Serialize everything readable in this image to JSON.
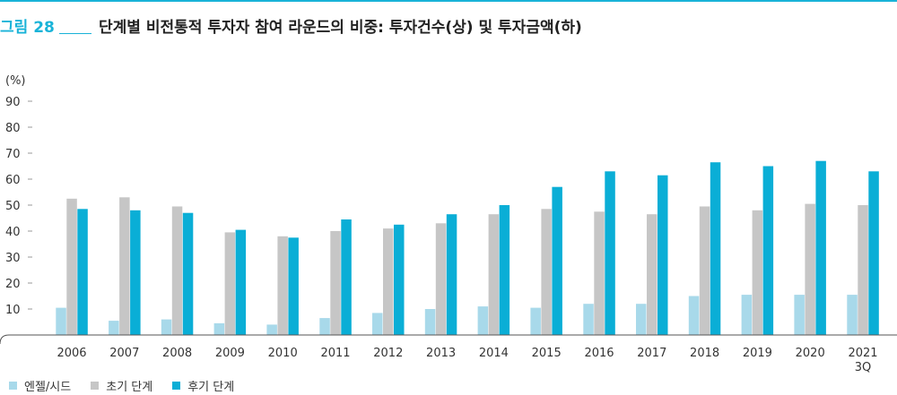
{
  "header": {
    "figure_label": "그림 28",
    "title": "단계별 비전통적 투자자 참여 라운드의 비중: 투자건수(상) 및 투자금액(하)"
  },
  "colors": {
    "accent": "#19b3d8",
    "angel_seed": "#a8d9ea",
    "early": "#c6c6c6",
    "late": "#0aaed6"
  },
  "chart_data": {
    "type": "bar",
    "title": "",
    "xlabel": "",
    "ylabel": "(%)",
    "ylim": [
      0,
      100
    ],
    "yticks": [
      10,
      20,
      30,
      40,
      50,
      60,
      70,
      80,
      90
    ],
    "grid": false,
    "legend_position": "bottom-left",
    "categories": [
      "2006",
      "2007",
      "2008",
      "2009",
      "2010",
      "2011",
      "2012",
      "2013",
      "2014",
      "2015",
      "2016",
      "2017",
      "2018",
      "2019",
      "2020",
      "2021\n3Q"
    ],
    "series": [
      {
        "name": "엔젤/시드",
        "color": "#a8d9ea",
        "values": [
          10.5,
          5.5,
          6.0,
          4.5,
          4.0,
          6.5,
          8.5,
          10.0,
          11.0,
          10.5,
          12.0,
          12.0,
          15.0,
          15.5,
          15.5,
          15.5
        ]
      },
      {
        "name": "초기 단계",
        "color": "#c6c6c6",
        "values": [
          52.5,
          53.0,
          49.5,
          39.5,
          38.0,
          40.0,
          41.0,
          43.0,
          46.5,
          48.5,
          47.5,
          46.5,
          49.5,
          48.0,
          50.5,
          50.0
        ]
      },
      {
        "name": "후기 단계",
        "color": "#0aaed6",
        "values": [
          48.5,
          48.0,
          47.0,
          40.5,
          37.5,
          44.5,
          42.5,
          46.5,
          50.0,
          57.0,
          63.0,
          61.5,
          66.5,
          65.0,
          67.0,
          63.0
        ]
      }
    ]
  }
}
